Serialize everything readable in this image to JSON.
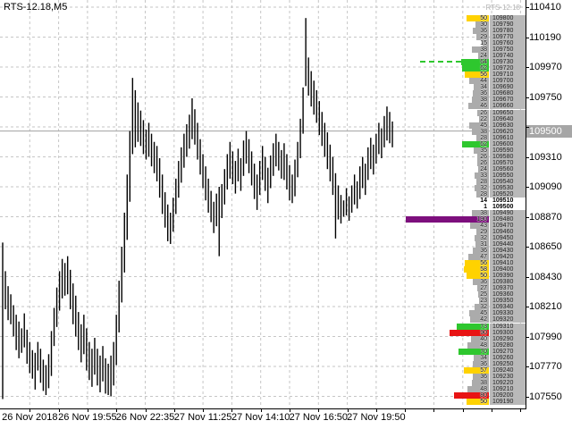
{
  "header": {
    "title": "RTS-12.18,M5"
  },
  "chart_data": {
    "type": "candlestick",
    "symbol": "RTS-12.18",
    "timeframe": "M5",
    "watermark": "RTS-12.18",
    "grid": true,
    "x_axis": {
      "labels": [
        "26 Nov 2018",
        "26 Nov 19:55",
        "26 Nov 22:35",
        "27 Nov 11:25",
        "27 Nov 14:10",
        "27 Nov 16:50",
        "27 Nov 19:50"
      ]
    },
    "y_axis": {
      "ticks": [
        110410,
        110190,
        109970,
        109750,
        109530,
        109310,
        109090,
        108870,
        108650,
        108430,
        108210,
        107990,
        107770,
        107550
      ],
      "current_price": "109500",
      "range": [
        107440,
        110430
      ]
    },
    "bars_high_low": [
      [
        108680,
        107530
      ],
      [
        108470,
        108190
      ],
      [
        108360,
        108110
      ],
      [
        108300,
        108080
      ],
      [
        108220,
        107990
      ],
      [
        108150,
        107890
      ],
      [
        108100,
        107830
      ],
      [
        108050,
        107870
      ],
      [
        108160,
        107910
      ],
      [
        108040,
        107790
      ],
      [
        107950,
        107720
      ],
      [
        107890,
        107680
      ],
      [
        107870,
        107600
      ],
      [
        107950,
        107740
      ],
      [
        107900,
        107650
      ],
      [
        107820,
        107590
      ],
      [
        107780,
        107560
      ],
      [
        107860,
        107610
      ],
      [
        108030,
        107700
      ],
      [
        108200,
        107920
      ],
      [
        108350,
        108060
      ],
      [
        108470,
        108180
      ],
      [
        108560,
        108270
      ],
      [
        108530,
        108290
      ],
      [
        108580,
        108300
      ],
      [
        108480,
        108190
      ],
      [
        108380,
        108080
      ],
      [
        108290,
        107990
      ],
      [
        108170,
        107890
      ],
      [
        108080,
        107800
      ],
      [
        108150,
        107860
      ],
      [
        108050,
        107740
      ],
      [
        107950,
        107670
      ],
      [
        107900,
        107620
      ],
      [
        107980,
        107710
      ],
      [
        107900,
        107630
      ],
      [
        107850,
        107580
      ],
      [
        107920,
        107660
      ],
      [
        107830,
        107570
      ],
      [
        107790,
        107560
      ],
      [
        107850,
        107550
      ],
      [
        107950,
        107630
      ],
      [
        108150,
        107780
      ],
      [
        108400,
        108020
      ],
      [
        108650,
        108240
      ],
      [
        108900,
        108460
      ],
      [
        109180,
        108700
      ],
      [
        109500,
        108980
      ],
      [
        109890,
        109330
      ],
      [
        109800,
        109380
      ],
      [
        109710,
        109420
      ],
      [
        109650,
        109390
      ],
      [
        109580,
        109330
      ],
      [
        109510,
        109290
      ],
      [
        109560,
        109310
      ],
      [
        109480,
        109240
      ],
      [
        109420,
        109190
      ],
      [
        109390,
        109130
      ],
      [
        109300,
        109010
      ],
      [
        109180,
        108890
      ],
      [
        109050,
        108790
      ],
      [
        108960,
        108690
      ],
      [
        108900,
        108670
      ],
      [
        109010,
        108760
      ],
      [
        109150,
        108890
      ],
      [
        109280,
        109010
      ],
      [
        109380,
        109120
      ],
      [
        109480,
        109230
      ],
      [
        109550,
        109310
      ],
      [
        109620,
        109370
      ],
      [
        109740,
        109440
      ],
      [
        109660,
        109400
      ],
      [
        109560,
        109290
      ],
      [
        109440,
        109180
      ],
      [
        109330,
        109080
      ],
      [
        109240,
        108990
      ],
      [
        109150,
        108900
      ],
      [
        109060,
        108830
      ],
      [
        108980,
        108750
      ],
      [
        109040,
        108800
      ],
      [
        109090,
        108580
      ],
      [
        109110,
        108860
      ],
      [
        109220,
        108960
      ],
      [
        109330,
        109070
      ],
      [
        109420,
        109150
      ],
      [
        109350,
        109110
      ],
      [
        109280,
        109040
      ],
      [
        109370,
        109130
      ],
      [
        109300,
        109060
      ],
      [
        109430,
        109170
      ],
      [
        109500,
        109260
      ],
      [
        109440,
        109190
      ],
      [
        109350,
        109100
      ],
      [
        109260,
        109000
      ],
      [
        109180,
        108920
      ],
      [
        109280,
        109030
      ],
      [
        109390,
        109140
      ],
      [
        109310,
        109060
      ],
      [
        109230,
        108970
      ],
      [
        109320,
        109080
      ],
      [
        109410,
        109170
      ],
      [
        109480,
        109240
      ],
      [
        109420,
        109210
      ],
      [
        109360,
        109150
      ],
      [
        109410,
        109140
      ],
      [
        109330,
        109070
      ],
      [
        109250,
        108990
      ],
      [
        109180,
        108970
      ],
      [
        109290,
        109020
      ],
      [
        109420,
        109160
      ],
      [
        109590,
        109300
      ],
      [
        109820,
        109480
      ],
      [
        110330,
        109830
      ],
      [
        110040,
        109760
      ],
      [
        109940,
        109680
      ],
      [
        109870,
        109620
      ],
      [
        109800,
        109560
      ],
      [
        109720,
        109470
      ],
      [
        109640,
        109390
      ],
      [
        109560,
        109310
      ],
      [
        109490,
        109220
      ],
      [
        109400,
        109130
      ],
      [
        109310,
        109030
      ],
      [
        109190,
        108710
      ],
      [
        109100,
        108850
      ],
      [
        109030,
        108820
      ],
      [
        108990,
        108870
      ],
      [
        109080,
        108880
      ],
      [
        109020,
        108840
      ],
      [
        109100,
        108900
      ],
      [
        109180,
        108960
      ],
      [
        109130,
        108930
      ],
      [
        109240,
        109000
      ],
      [
        109310,
        109080
      ],
      [
        109260,
        109030
      ],
      [
        109380,
        109140
      ],
      [
        109450,
        109220
      ],
      [
        109400,
        109180
      ],
      [
        109480,
        109260
      ],
      [
        109560,
        109330
      ],
      [
        109520,
        109300
      ],
      [
        109610,
        109380
      ],
      [
        109680,
        109430
      ],
      [
        109640,
        109410
      ],
      [
        109570,
        109380
      ]
    ],
    "volume_profile": {
      "anchor_price": 109800,
      "step": 10,
      "rows": [
        [
          50,
          "y"
        ],
        [
          30,
          "n"
        ],
        [
          36,
          "n"
        ],
        [
          29,
          "n"
        ],
        [
          15,
          "n"
        ],
        [
          38,
          "n"
        ],
        [
          24,
          "n"
        ],
        [
          64,
          "g",
          "d"
        ],
        [
          62,
          "g"
        ],
        [
          56,
          "y"
        ],
        [
          44,
          "n"
        ],
        [
          34,
          "n"
        ],
        [
          36,
          "n"
        ],
        [
          38,
          "n"
        ],
        [
          46,
          "n"
        ],
        [
          26,
          "n"
        ],
        [
          22,
          "n"
        ],
        [
          45,
          "n"
        ],
        [
          38,
          "n"
        ],
        [
          28,
          "n"
        ],
        [
          62,
          "g"
        ],
        [
          35,
          "n"
        ],
        [
          26,
          "n"
        ],
        [
          26,
          "n"
        ],
        [
          24,
          "n"
        ],
        [
          33,
          "n"
        ],
        [
          28,
          "n"
        ],
        [
          32,
          "n"
        ],
        [
          28,
          "n"
        ],
        [
          14,
          "c"
        ],
        [
          1,
          "c"
        ],
        [
          38,
          "n"
        ],
        [
          190,
          "p"
        ],
        [
          43,
          "n"
        ],
        [
          29,
          "n"
        ],
        [
          32,
          "n"
        ],
        [
          31,
          "n"
        ],
        [
          36,
          "n"
        ],
        [
          47,
          "n"
        ],
        [
          56,
          "y"
        ],
        [
          58,
          "y"
        ],
        [
          50,
          "y"
        ],
        [
          36,
          "n"
        ],
        [
          27,
          "n"
        ],
        [
          25,
          "n"
        ],
        [
          23,
          "n"
        ],
        [
          32,
          "n"
        ],
        [
          45,
          "n"
        ],
        [
          42,
          "n"
        ],
        [
          73,
          "g"
        ],
        [
          90,
          "r"
        ],
        [
          40,
          "n"
        ],
        [
          48,
          "n"
        ],
        [
          70,
          "g"
        ],
        [
          34,
          "n"
        ],
        [
          36,
          "n"
        ],
        [
          57,
          "y"
        ],
        [
          36,
          "n"
        ],
        [
          38,
          "n"
        ],
        [
          48,
          "n"
        ],
        [
          80,
          "r"
        ],
        [
          50,
          "y"
        ]
      ]
    }
  },
  "colors": {
    "bar_grey": "#ababab",
    "price_cell_grey": "#b9b9b9",
    "yellow": "#ffd200",
    "green": "#2ec72e",
    "red": "#e81414",
    "purple": "#7d0f7d",
    "grid": "#c6c6c6",
    "candle": "#000000",
    "current_price_line": "#a0a0a0",
    "price_box_bg": "#a6a6a6",
    "watermark": "#b3b3b3"
  }
}
